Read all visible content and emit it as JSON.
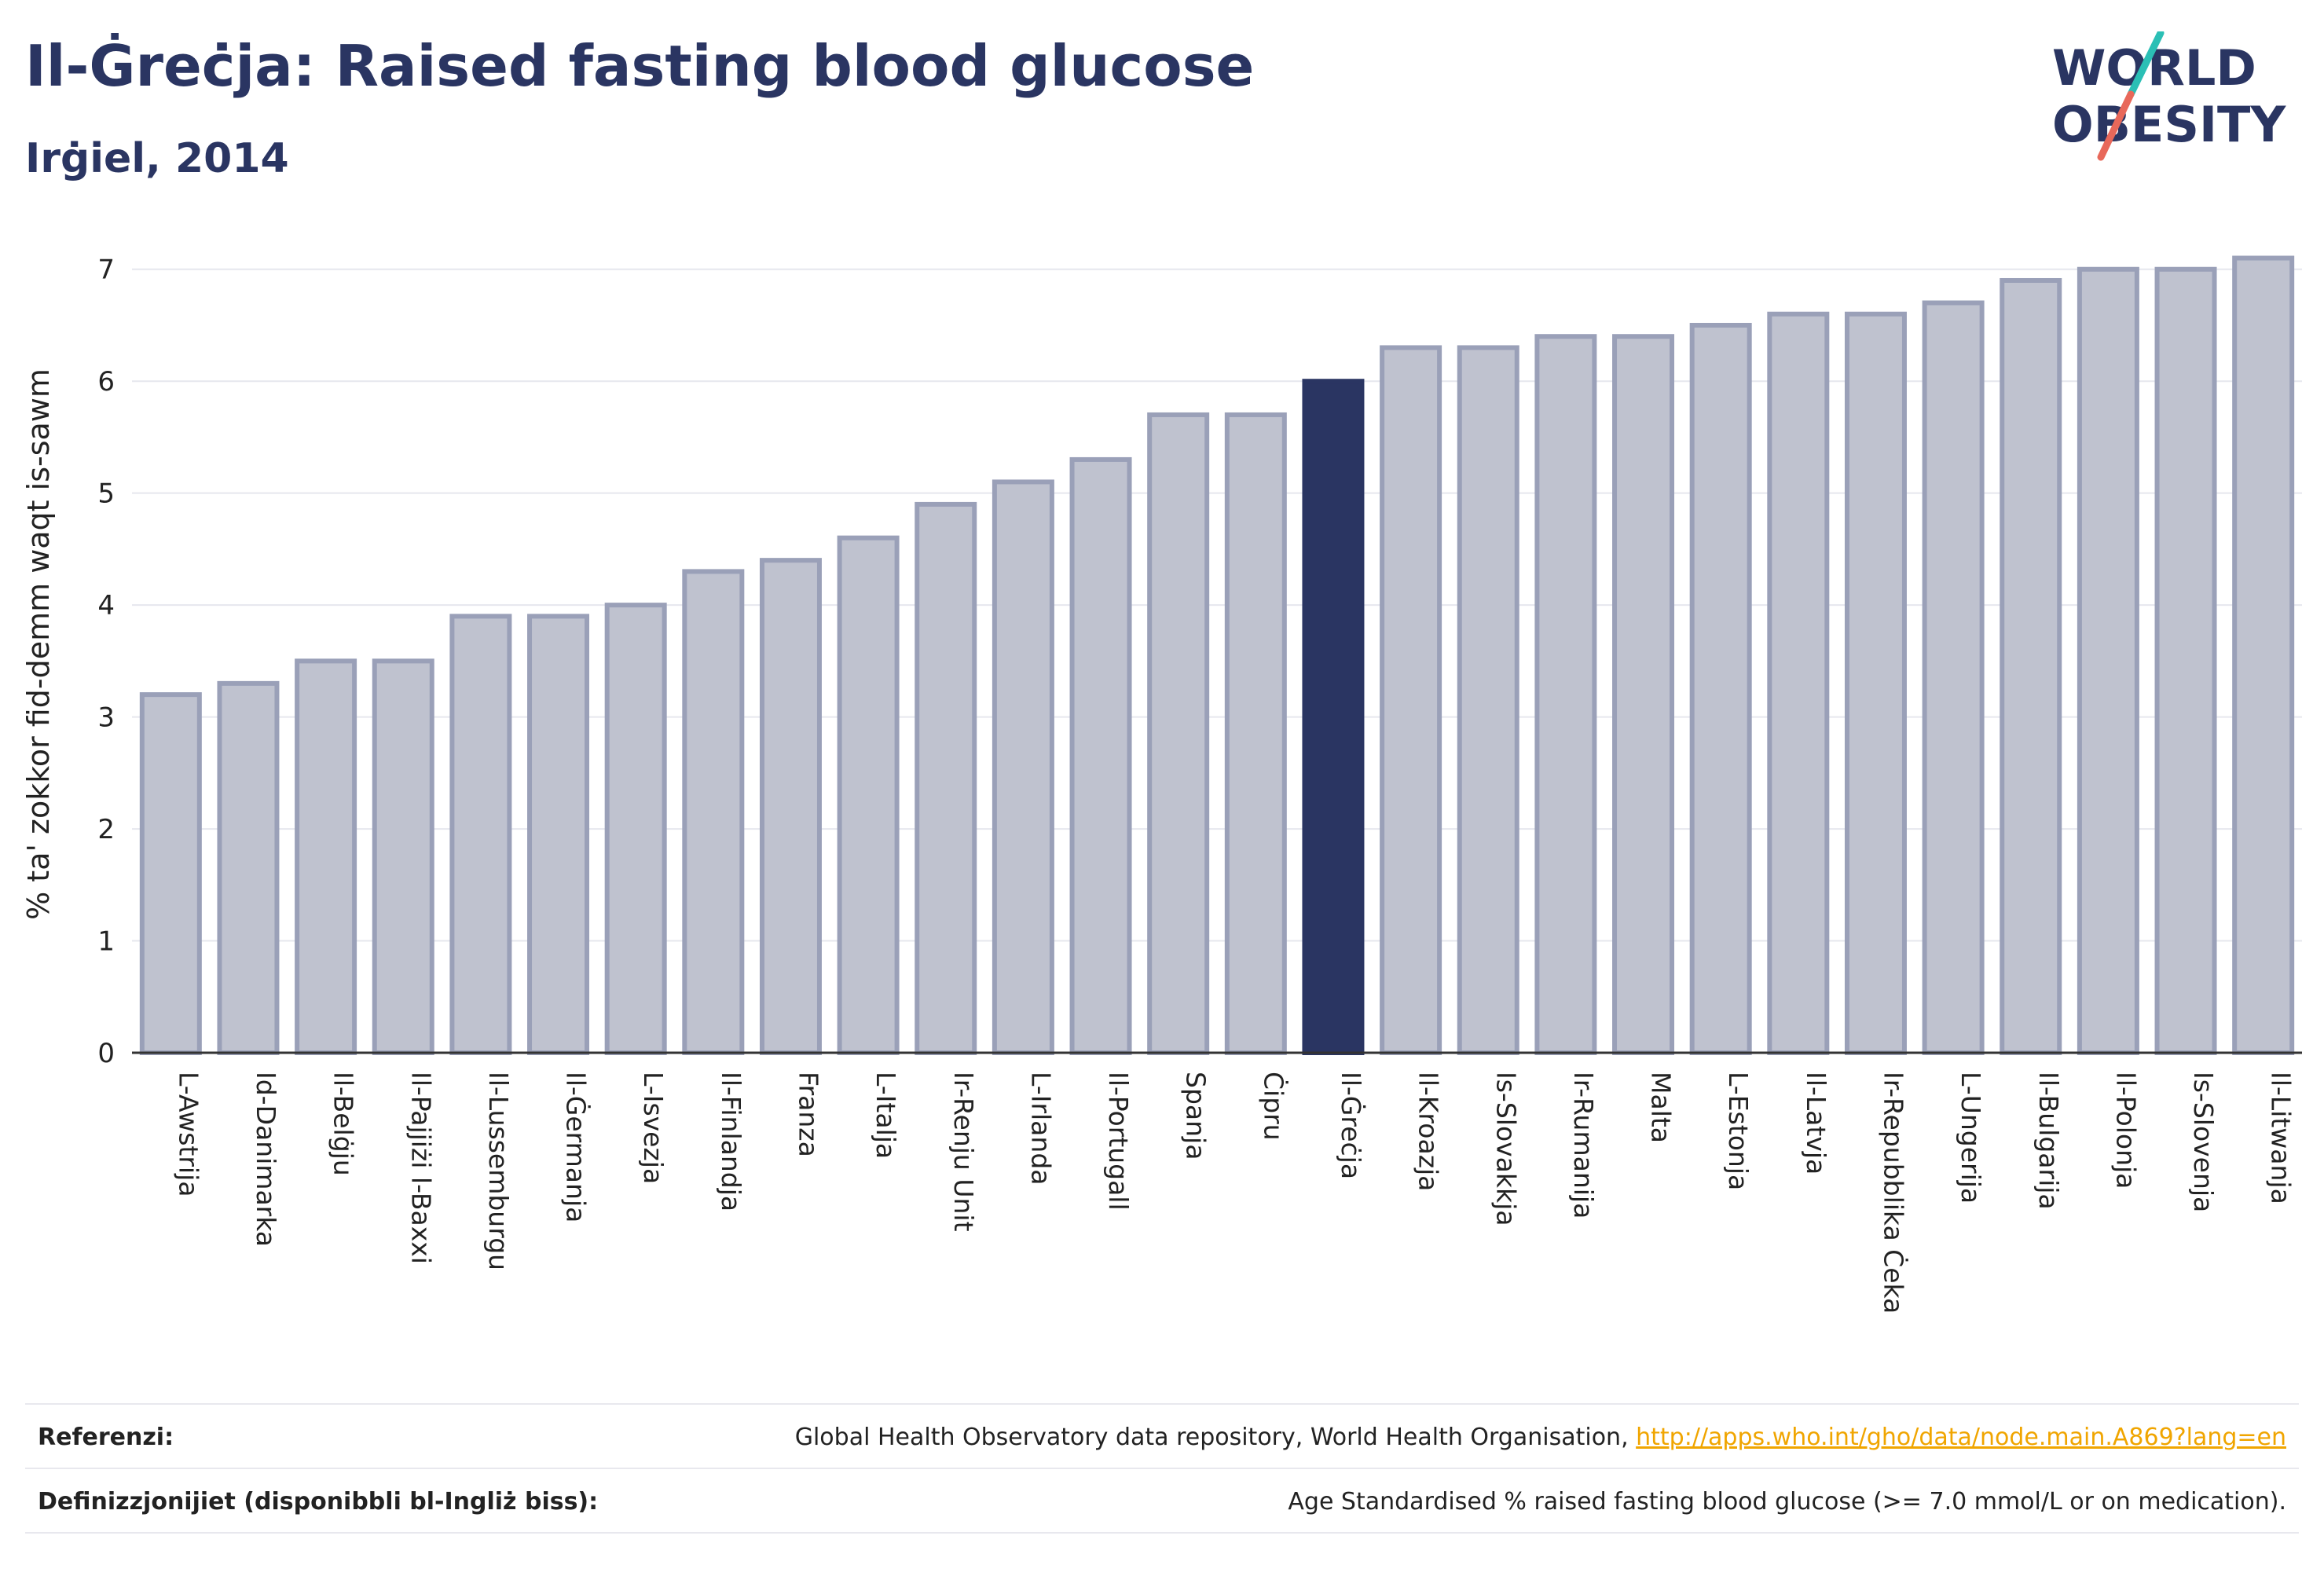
{
  "header": {
    "title": "Il-Ġreċja: Raised fasting blood glucose",
    "subtitle": "Irġiel, 2014"
  },
  "logo": {
    "line1": "WORLD",
    "line2": "OBESITY",
    "slash_colors": [
      "#2bbfb5",
      "#e8685a"
    ],
    "text_color": "#2a3562"
  },
  "chart_data": {
    "type": "bar",
    "ylabel": "% ta' zokkor fid-demm waqt is-sawm",
    "ylim": [
      0,
      7.3
    ],
    "yticks": [
      0,
      1,
      2,
      3,
      4,
      5,
      6,
      7
    ],
    "grid": true,
    "highlight_category": "Il-Ġreċja",
    "highlight_color": "#2a3562",
    "bar_color": "#bfc2cf",
    "bar_edge_color": "#9aa0b8",
    "categories": [
      "L-Awstrija",
      "Id-Danimarka",
      "Il-Belġju",
      "Il-Pajjiżi l-Baxxi",
      "Il-Lussemburgu",
      "Il-Ġermanja",
      "L-Isvezja",
      "Il-Finlandja",
      "Franza",
      "L-Italja",
      "Ir-Renju Unit",
      "L-Irlanda",
      "Il-Portugall",
      "Spanja",
      "Ċipru",
      "Il-Ġreċja",
      "Il-Kroazja",
      "Is-Slovakkja",
      "Ir-Rumanija",
      "Malta",
      "L-Estonja",
      "Il-Latvja",
      "Ir-Repubblika Ċeka",
      "L-Ungerija",
      "Il-Bulgarija",
      "Il-Polonja",
      "Is-Slovenja",
      "Il-Litwanja"
    ],
    "values": [
      3.2,
      3.3,
      3.5,
      3.5,
      3.9,
      3.9,
      4.0,
      4.3,
      4.4,
      4.6,
      4.9,
      5.1,
      5.3,
      5.7,
      5.7,
      6.0,
      6.3,
      6.3,
      6.4,
      6.4,
      6.5,
      6.6,
      6.6,
      6.7,
      6.9,
      7.0,
      7.0,
      7.1
    ]
  },
  "footer": {
    "references_label": "Referenzi:",
    "references_text": "Global Health Observatory data repository, World Health Organisation, ",
    "references_link": "http://apps.who.int/gho/data/node.main.A869?lang=en",
    "definitions_label": "Definizzjonijiet (disponibbli bl-Ingliż biss):",
    "definitions_text": "Age Standardised % raised fasting blood glucose (>= 7.0 mmol/L or on medication)."
  }
}
